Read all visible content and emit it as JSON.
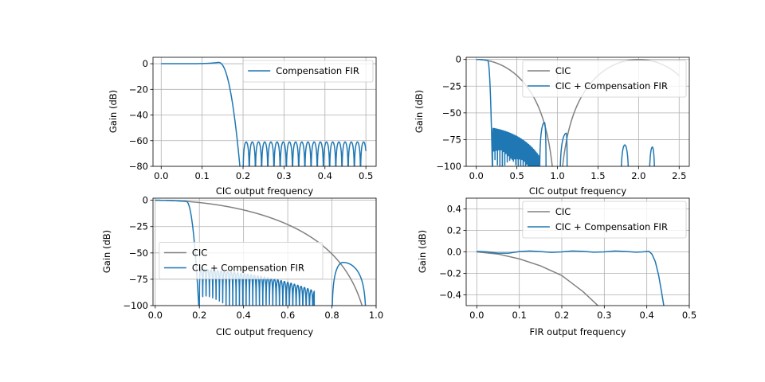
{
  "figure": {
    "background": "#ffffff"
  },
  "chart_data": [
    {
      "type": "line",
      "xlabel": "CIC output frequency",
      "ylabel": "Gain (dB)",
      "xlim": [
        -0.02,
        0.525
      ],
      "ylim": [
        -80,
        5
      ],
      "xticks": [
        0.0,
        0.1,
        0.2,
        0.3,
        0.4,
        0.5
      ],
      "xtick_labels": [
        "0.0",
        "0.1",
        "0.2",
        "0.3",
        "0.4",
        "0.5"
      ],
      "yticks": [
        0,
        -20,
        -40,
        -60,
        -80
      ],
      "ytick_labels": [
        "0",
        "−20",
        "−40",
        "−60",
        "−80"
      ],
      "grid": true,
      "legend": "top-right",
      "series": [
        {
          "name": "Compensation FIR",
          "color": "#1f77b4",
          "shape": "fir_response",
          "passband_edge": 0.14,
          "stopband_start": 0.2,
          "peak_gain_db": 1.0,
          "stopband_level_db": -61,
          "lobe_spacing": 0.0151,
          "x_end": 0.5
        }
      ]
    },
    {
      "type": "line",
      "xlabel": "CIC output frequency",
      "ylabel": "Gain (dB)",
      "xlim": [
        -0.125,
        2.625
      ],
      "ylim": [
        -100,
        2
      ],
      "xticks": [
        0.0,
        0.5,
        1.0,
        1.5,
        2.0,
        2.5
      ],
      "xtick_labels": [
        "0.0",
        "0.5",
        "1.0",
        "1.5",
        "2.0",
        "2.5"
      ],
      "yticks": [
        0,
        -25,
        -50,
        -75,
        -100
      ],
      "ytick_labels": [
        "0",
        "−25",
        "−50",
        "−75",
        "−100"
      ],
      "grid": true,
      "legend": "top-right",
      "series": [
        {
          "name": "CIC",
          "color": "#808080",
          "shape": "cic_response",
          "order": 5,
          "null_spacing": 1.0,
          "x_end": 2.5
        },
        {
          "name": "CIC + Compensation FIR",
          "color": "#1f77b4",
          "shape": "cic_plus_fir_response",
          "passband_edge": 0.14,
          "stopband_start": 0.2,
          "stopband_level_db": -63,
          "lobe_spacing": 0.0151,
          "image_lobes": [
            {
              "null_left": 0.78,
              "null_right": 0.86,
              "peak_x": 0.84,
              "peak_db": -59
            },
            {
              "null_left": 1.03,
              "null_right": 1.12,
              "peak_x": 1.11,
              "peak_db": -69
            },
            {
              "null_left": 1.78,
              "null_right": 1.88,
              "peak_x": 1.83,
              "peak_db": -80
            },
            {
              "null_left": 2.13,
              "null_right": 2.2,
              "peak_x": 2.17,
              "peak_db": -82
            }
          ]
        }
      ]
    },
    {
      "type": "line",
      "xlabel": "CIC output frequency",
      "ylabel": "Gain (dB)",
      "xlim": [
        -0.01,
        1.0
      ],
      "ylim": [
        -100,
        2
      ],
      "xticks": [
        0.0,
        0.2,
        0.4,
        0.6,
        0.8,
        1.0
      ],
      "xtick_labels": [
        "0.0",
        "0.2",
        "0.4",
        "0.6",
        "0.8",
        "1.0"
      ],
      "yticks": [
        0,
        -25,
        -50,
        -75,
        -100
      ],
      "ytick_labels": [
        "0",
        "−25",
        "−50",
        "−75",
        "−100"
      ],
      "grid": true,
      "legend": "center-right",
      "series": [
        {
          "name": "CIC",
          "color": "#808080",
          "shape": "cic_response",
          "order": 5,
          "null_spacing": 1.0,
          "x_end": 0.955
        },
        {
          "name": "CIC + Compensation FIR",
          "color": "#1f77b4",
          "shape": "cic_plus_fir_response",
          "passband_edge": 0.14,
          "stopband_start": 0.2,
          "stopband_level_db": -64,
          "lobe_spacing": 0.0151,
          "stopband_end": 0.72,
          "image_lobes": [
            {
              "null_left": 0.8,
              "null_right": 0.955,
              "peak_x": 0.85,
              "peak_db": -59
            }
          ]
        }
      ]
    },
    {
      "type": "line",
      "xlabel": "FIR output frequency",
      "ylabel": "Gain (dB)",
      "xlim": [
        -0.025,
        0.5
      ],
      "ylim": [
        -0.5,
        0.5
      ],
      "xticks": [
        0.0,
        0.1,
        0.2,
        0.3,
        0.4,
        0.5
      ],
      "xtick_labels": [
        "0.0",
        "0.1",
        "0.2",
        "0.3",
        "0.4",
        "0.5"
      ],
      "yticks": [
        0.4,
        0.2,
        0.0,
        -0.2,
        -0.4
      ],
      "ytick_labels": [
        "0.4",
        "0.2",
        "0.0",
        "−0.2",
        "−0.4"
      ],
      "grid": true,
      "legend": "top-right",
      "series": [
        {
          "name": "CIC",
          "color": "#808080",
          "points": [
            [
              0.0,
              0.0
            ],
            [
              0.05,
              -0.02
            ],
            [
              0.1,
              -0.065
            ],
            [
              0.15,
              -0.13
            ],
            [
              0.2,
              -0.22
            ],
            [
              0.25,
              -0.37
            ],
            [
              0.285,
              -0.5
            ]
          ]
        },
        {
          "name": "CIC + Compensation FIR",
          "color": "#1f77b4",
          "points": [
            [
              0.0,
              0.005
            ],
            [
              0.025,
              0.0
            ],
            [
              0.05,
              -0.012
            ],
            [
              0.075,
              -0.012
            ],
            [
              0.1,
              0.003
            ],
            [
              0.125,
              0.008
            ],
            [
              0.15,
              0.003
            ],
            [
              0.175,
              -0.005
            ],
            [
              0.2,
              0.0
            ],
            [
              0.225,
              0.008
            ],
            [
              0.25,
              0.005
            ],
            [
              0.275,
              -0.003
            ],
            [
              0.3,
              0.0
            ],
            [
              0.325,
              0.008
            ],
            [
              0.35,
              0.004
            ],
            [
              0.375,
              -0.003
            ],
            [
              0.39,
              0.0
            ],
            [
              0.405,
              0.005
            ],
            [
              0.412,
              -0.02
            ],
            [
              0.42,
              -0.09
            ],
            [
              0.428,
              -0.22
            ],
            [
              0.435,
              -0.38
            ],
            [
              0.44,
              -0.5
            ]
          ]
        }
      ]
    }
  ]
}
